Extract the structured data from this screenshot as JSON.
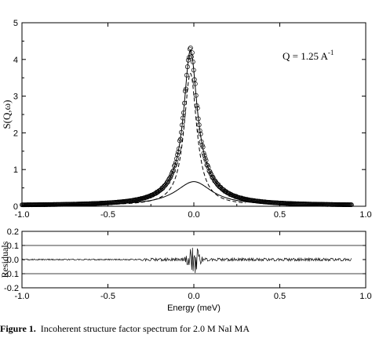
{
  "chart_data": [
    {
      "type": "line",
      "annotation": "Q = 1.25 A",
      "annotation_sup": "-1",
      "xlabel": "",
      "ylabel": "S(Q,ω)",
      "xlim": [
        -1.0,
        1.0
      ],
      "ylim": [
        0,
        5
      ],
      "x_ticks": [
        "-1.0",
        "-0.5",
        "0.0",
        "0.5",
        "1.0"
      ],
      "y_ticks": [
        "0",
        "1",
        "2",
        "3",
        "4",
        "5"
      ],
      "components": {
        "narrow_lorentzian": {
          "amplitude": 3.6,
          "center": -0.02,
          "hwhm": 0.045,
          "style": "dashed"
        },
        "broad_lorentzian": {
          "amplitude": 0.65,
          "center": 0.0,
          "hwhm": 0.13,
          "style": "solid"
        },
        "background": 0.02,
        "baseline_style": "dotted"
      },
      "data_markers": "circles"
    },
    {
      "type": "line",
      "xlabel": "Energy (meV)",
      "ylabel": "Residuals",
      "xlim": [
        -1.0,
        1.0
      ],
      "ylim": [
        -0.2,
        0.2
      ],
      "x_ticks": [
        "-1.0",
        "-0.5",
        "0.0",
        "0.5",
        "1.0"
      ],
      "y_ticks": [
        "0.2",
        "0.1",
        "0.0",
        "-0.1",
        "-0.2"
      ],
      "reference_lines": [
        0.1,
        -0.1
      ]
    }
  ],
  "caption": {
    "label": "Figure 1.",
    "text": "Incoherent structure factor spectrum for 2.0 M NaI MA"
  }
}
